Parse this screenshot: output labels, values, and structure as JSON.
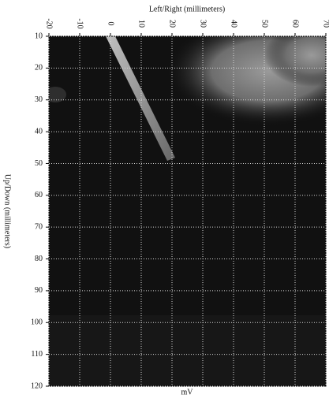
{
  "chart_data": {
    "type": "heatmap",
    "xlabel": "Left/Right (millimeters)",
    "ylabel": "Up/Down (millimeters)",
    "colorbar_label": "mV",
    "xlim": [
      -20,
      70
    ],
    "xticks": [
      -20,
      -10,
      0,
      10,
      20,
      30,
      40,
      50,
      60,
      70
    ],
    "ylim": [
      10,
      120
    ],
    "yticks": [
      10,
      20,
      30,
      40,
      50,
      60,
      70,
      80,
      90,
      100,
      110,
      120
    ],
    "y_inverted": true,
    "x_axis_position": "top",
    "grid": true,
    "grid_color": "#d8d8d8"
  }
}
